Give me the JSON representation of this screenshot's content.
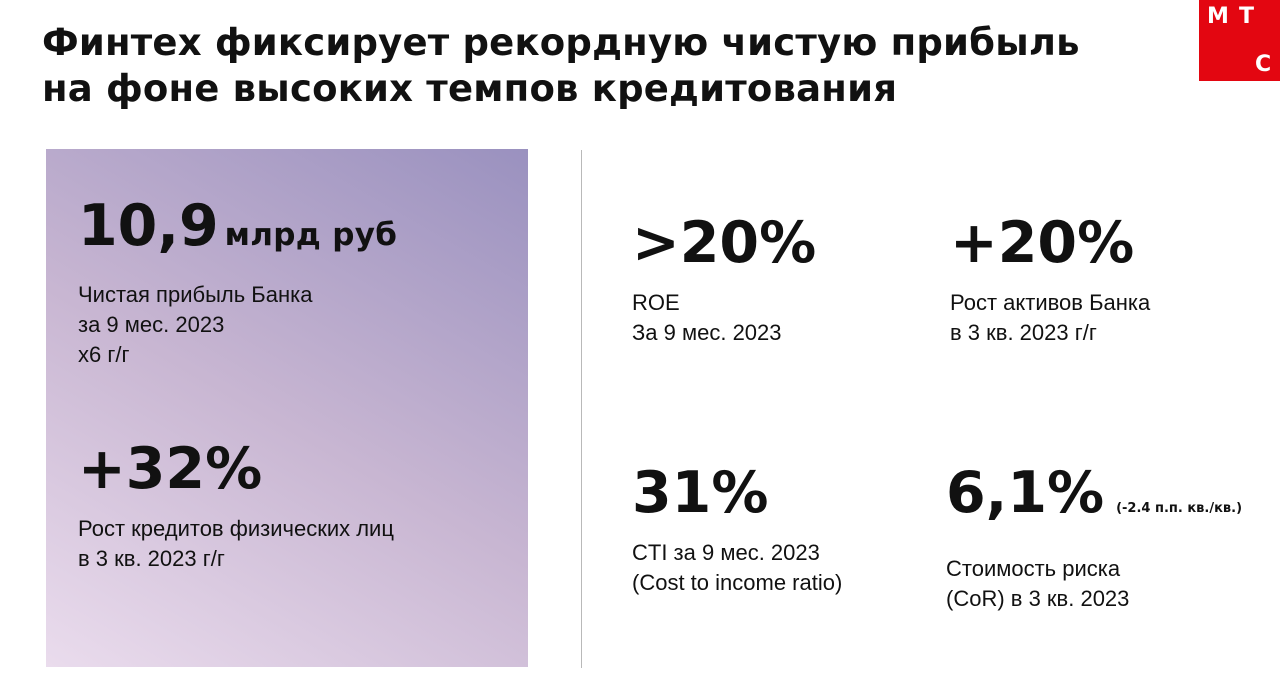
{
  "title": {
    "line1": "Финтех фиксирует рекордную чистую прибыль",
    "line2": "на фоне высоких темпов кредитования"
  },
  "logo": {
    "letter1": "М",
    "letter2": "Т",
    "letter3": "С",
    "color": "#e30611"
  },
  "colors": {
    "panel_gradient": [
      "#eadced",
      "#c8b6d2",
      "#9a91bf"
    ]
  },
  "left": {
    "m1": {
      "value": "10,9",
      "unit": "млрд руб",
      "line1": "Чистая прибыль Банка",
      "line2": "за 9 мес. 2023",
      "line3": "x6 г/г"
    },
    "m2": {
      "value": "+32%",
      "line1": "Рост кредитов физических лиц",
      "line2": "в 3 кв. 2023 г/г"
    }
  },
  "right": {
    "m1": {
      "value": ">20%",
      "line1": "ROE",
      "line2": "За 9 мес. 2023"
    },
    "m2": {
      "value": "+20%",
      "line1": "Рост активов Банка",
      "line2": "в 3 кв. 2023 г/г"
    },
    "m3": {
      "value": "31%",
      "line1": "CTI за 9 мес. 2023",
      "line2": "(Cost to income ratio)"
    },
    "m4": {
      "value": "6,1%",
      "note": "(-2.4 п.п. кв./кв.)",
      "line1": "Стоимость риска",
      "line2": "(CoR) в 3 кв. 2023"
    }
  }
}
